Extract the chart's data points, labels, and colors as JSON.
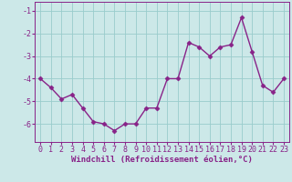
{
  "x": [
    0,
    1,
    2,
    3,
    4,
    5,
    6,
    7,
    8,
    9,
    10,
    11,
    12,
    13,
    14,
    15,
    16,
    17,
    18,
    19,
    20,
    21,
    22,
    23
  ],
  "y": [
    -4.0,
    -4.4,
    -4.9,
    -4.7,
    -5.3,
    -5.9,
    -6.0,
    -6.3,
    -6.0,
    -6.0,
    -5.3,
    -5.3,
    -4.0,
    -4.0,
    -2.4,
    -2.6,
    -3.0,
    -2.6,
    -2.5,
    -1.3,
    -2.8,
    -4.3,
    -4.6,
    -4.0
  ],
  "line_color": "#882288",
  "marker": "D",
  "marker_size": 2.5,
  "linewidth": 1.0,
  "xlabel": "Windchill (Refroidissement éolien,°C)",
  "xlabel_fontsize": 6.5,
  "ylim": [
    -6.8,
    -0.6
  ],
  "xlim": [
    -0.5,
    23.5
  ],
  "yticks": [
    -6,
    -5,
    -4,
    -3,
    -2,
    -1
  ],
  "xticks": [
    0,
    1,
    2,
    3,
    4,
    5,
    6,
    7,
    8,
    9,
    10,
    11,
    12,
    13,
    14,
    15,
    16,
    17,
    18,
    19,
    20,
    21,
    22,
    23
  ],
  "grid_color": "#99cccc",
  "bg_color": "#cce8e8",
  "tick_fontsize": 6.0,
  "tick_color": "#882288"
}
